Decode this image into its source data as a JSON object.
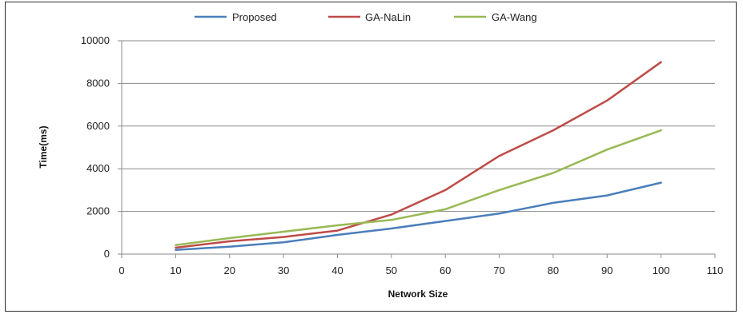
{
  "chart_data": {
    "type": "line",
    "xlabel": "Network Size",
    "ylabel": "Time(ms)",
    "xlim": [
      0,
      110
    ],
    "ylim": [
      0,
      10000
    ],
    "x_ticks": [
      0,
      10,
      20,
      30,
      40,
      50,
      60,
      70,
      80,
      90,
      100,
      110
    ],
    "y_ticks": [
      0,
      2000,
      4000,
      6000,
      8000,
      10000
    ],
    "grid": "horizontal at 4000 and 8000",
    "legend_position": "top",
    "x": [
      10,
      20,
      30,
      40,
      50,
      60,
      70,
      80,
      90,
      100
    ],
    "series": [
      {
        "name": "Proposed",
        "color": "#4a7ebb",
        "values": [
          200,
          350,
          550,
          900,
          1200,
          1550,
          1900,
          2400,
          2750,
          3350
        ]
      },
      {
        "name": "GA-NaLin",
        "color": "#be4b48",
        "values": [
          300,
          600,
          800,
          1100,
          1850,
          3000,
          4600,
          5800,
          7200,
          9000
        ]
      },
      {
        "name": "GA-Wang",
        "color": "#98b954",
        "values": [
          420,
          750,
          1050,
          1350,
          1600,
          2100,
          3000,
          3800,
          4900,
          5800
        ]
      }
    ]
  }
}
